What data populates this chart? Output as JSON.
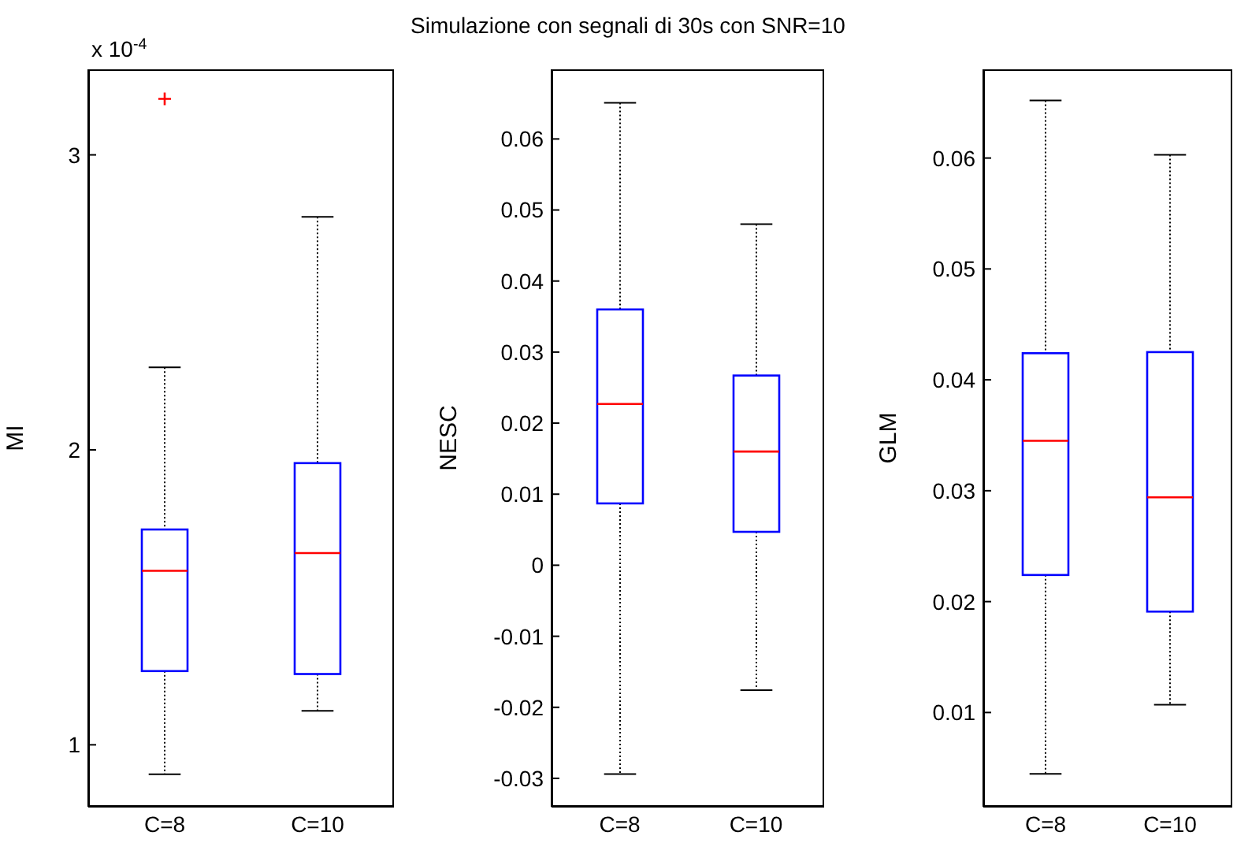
{
  "chart_data": [
    {
      "type": "box",
      "ylabel": "MI",
      "annotations": [
        "x 10$^{-4}$"
      ],
      "categories": [
        "C=8",
        "C=10"
      ],
      "color": "#0000ff",
      "ylim": [
        0.79,
        3.29
      ],
      "yticks": [
        1,
        2,
        3
      ],
      "grid": false,
      "boxes": [
        {
          "low": 0.9,
          "q1": 1.25,
          "median": 1.59,
          "q3": 1.73,
          "high": 2.28,
          "outliers": [
            3.19
          ]
        },
        {
          "low": 1.115,
          "q1": 1.24,
          "median": 1.65,
          "q3": 1.955,
          "high": 2.79
        }
      ]
    },
    {
      "type": "box",
      "title": "Simulazione con segnali di 30s con SNR=10",
      "ylabel": "NESC",
      "categories": [
        "C=8",
        "C=10"
      ],
      "color": "#0000ff",
      "ylim": [
        -0.034,
        0.0698
      ],
      "yticks": [
        -0.03,
        -0.02,
        -0.01,
        0,
        0.01,
        0.02,
        0.03,
        0.04,
        0.05,
        0.06
      ],
      "grid": false,
      "boxes": [
        {
          "low": -0.0294,
          "q1": 0.0087,
          "median": 0.0227,
          "q3": 0.036,
          "high": 0.0651
        },
        {
          "low": -0.0176,
          "q1": 0.0047,
          "median": 0.016,
          "q3": 0.0267,
          "high": 0.048
        }
      ]
    },
    {
      "type": "box",
      "ylabel": "GLM",
      "categories": [
        "C=8",
        "C=10"
      ],
      "color": "#0000ff",
      "ylim": [
        0.0015,
        0.068
      ],
      "yticks": [
        0.01,
        0.02,
        0.03,
        0.04,
        0.05,
        0.06
      ],
      "grid": false,
      "boxes": [
        {
          "low": 0.00446,
          "q1": 0.0224,
          "median": 0.0345,
          "q3": 0.0424,
          "high": 0.0652
        },
        {
          "low": 0.0107,
          "q1": 0.0191,
          "median": 0.0294,
          "q3": 0.0425,
          "high": 0.0603
        }
      ]
    }
  ]
}
